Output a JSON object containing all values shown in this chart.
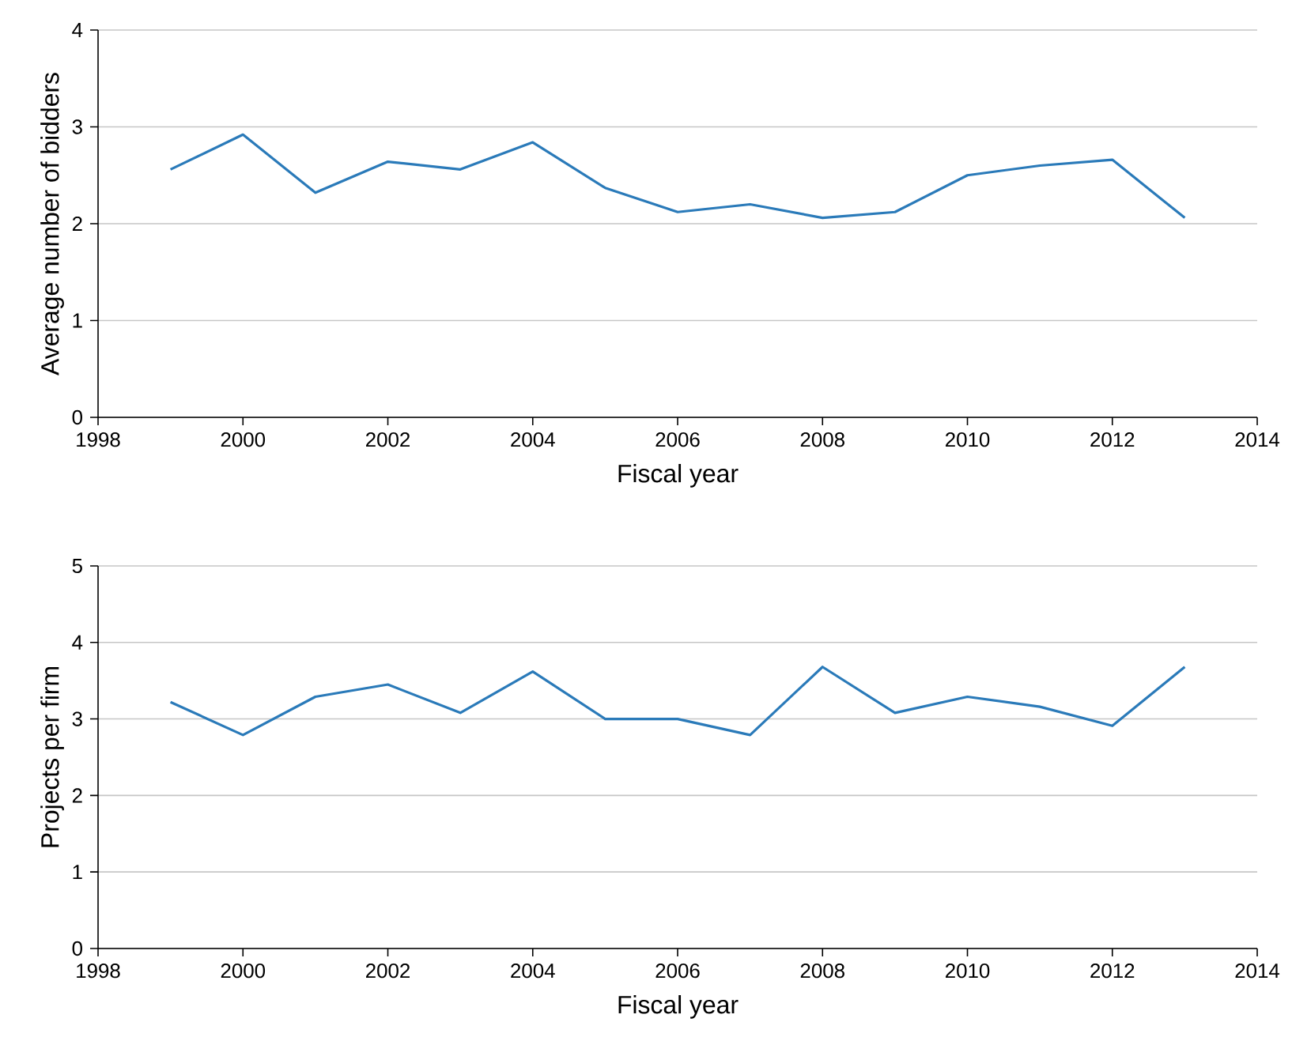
{
  "chart_data": [
    {
      "type": "line",
      "ylabel": "Average number of bidders",
      "xlabel": "Fiscal year",
      "x": [
        1999,
        2000,
        2001,
        2002,
        2003,
        2004,
        2005,
        2006,
        2007,
        2008,
        2009,
        2010,
        2011,
        2012,
        2013
      ],
      "series": [
        {
          "color": "#2a7ab9",
          "values": [
            2.56,
            2.92,
            2.32,
            2.64,
            2.56,
            2.84,
            2.37,
            2.12,
            2.2,
            2.06,
            2.12,
            2.5,
            2.6,
            2.66,
            2.06
          ]
        }
      ],
      "xlim": [
        1998,
        2014
      ],
      "xticks": [
        1998,
        2000,
        2002,
        2004,
        2006,
        2008,
        2010,
        2012,
        2014
      ],
      "ylim": [
        0,
        4
      ],
      "yticks": [
        0,
        1,
        2,
        3,
        4
      ],
      "grid": "y",
      "marker": "none",
      "line_style": "solid"
    },
    {
      "type": "line",
      "ylabel": "Projects per firm",
      "xlabel": "Fiscal year",
      "x": [
        1999,
        2000,
        2001,
        2002,
        2003,
        2004,
        2005,
        2006,
        2007,
        2008,
        2009,
        2010,
        2011,
        2012,
        2013
      ],
      "series": [
        {
          "color": "#2a7ab9",
          "values": [
            3.22,
            2.79,
            3.29,
            3.45,
            3.08,
            3.62,
            3.0,
            3.0,
            2.79,
            3.68,
            3.08,
            3.29,
            3.16,
            2.91,
            3.68
          ]
        }
      ],
      "xlim": [
        1998,
        2014
      ],
      "xticks": [
        1998,
        2000,
        2002,
        2004,
        2006,
        2008,
        2010,
        2012,
        2014
      ],
      "ylim": [
        0,
        5
      ],
      "yticks": [
        0,
        1,
        2,
        3,
        4,
        5
      ],
      "grid": "y",
      "marker": "none",
      "line_style": "solid"
    }
  ]
}
